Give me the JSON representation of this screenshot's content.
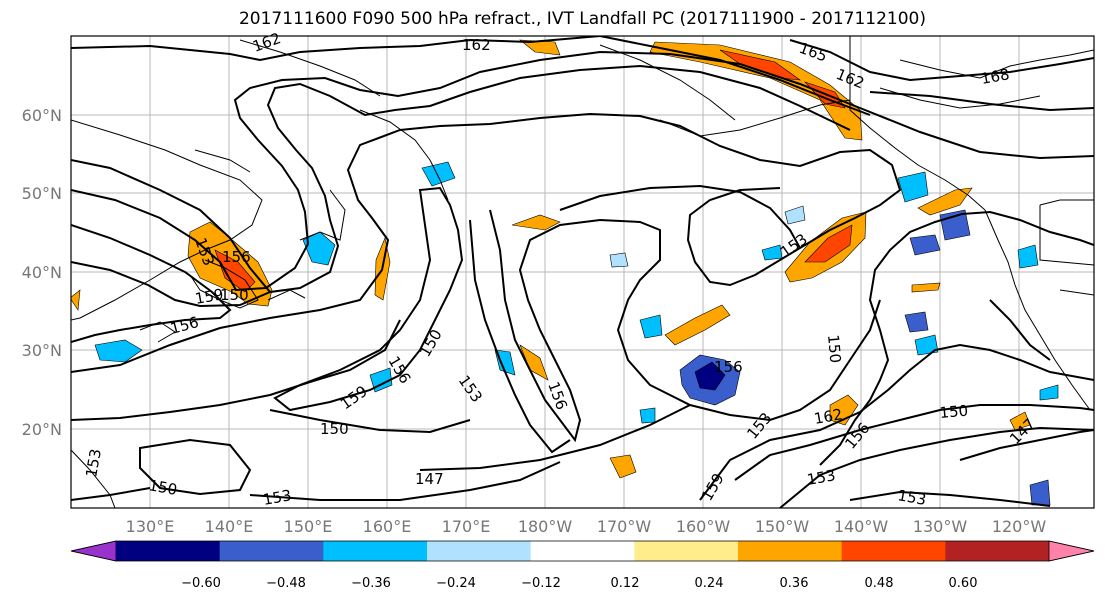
{
  "title": "2017111600 F090 500 hPa refract., IVT Landfall PC (2017111900 - 2017112100)",
  "lon_labels": [
    "130°E",
    "140°E",
    "150°E",
    "160°E",
    "170°E",
    "180°W",
    "170°W",
    "160°W",
    "150°W",
    "140°W",
    "130°W",
    "120°W"
  ],
  "lat_labels": [
    "60°N",
    "50°N",
    "40°N",
    "30°N",
    "20°N"
  ],
  "colorbar": {
    "ticks": [
      "−0.60",
      "−0.48",
      "−0.36",
      "−0.24",
      "−0.12",
      "0.12",
      "0.24",
      "0.36",
      "0.48",
      "0.60"
    ],
    "colors": [
      "#9932cc",
      "#000080",
      "#3a5fcd",
      "#00bfff",
      "#b0e2ff",
      "#ffffff",
      "#ffec8b",
      "#ffa500",
      "#ff4500",
      "#b22222",
      "#ff82ab"
    ]
  },
  "contour_labels": [
    "162",
    "162",
    "165",
    "162",
    "168",
    "153",
    "156",
    "159",
    "150",
    "156",
    "159",
    "153",
    "156",
    "150",
    "147",
    "150",
    "153",
    "150",
    "156",
    "153",
    "156",
    "162",
    "150",
    "153",
    "156",
    "159",
    "153",
    "147",
    "153",
    "150",
    "153"
  ],
  "contour_color": "#000000",
  "coast_color": "#000000"
}
